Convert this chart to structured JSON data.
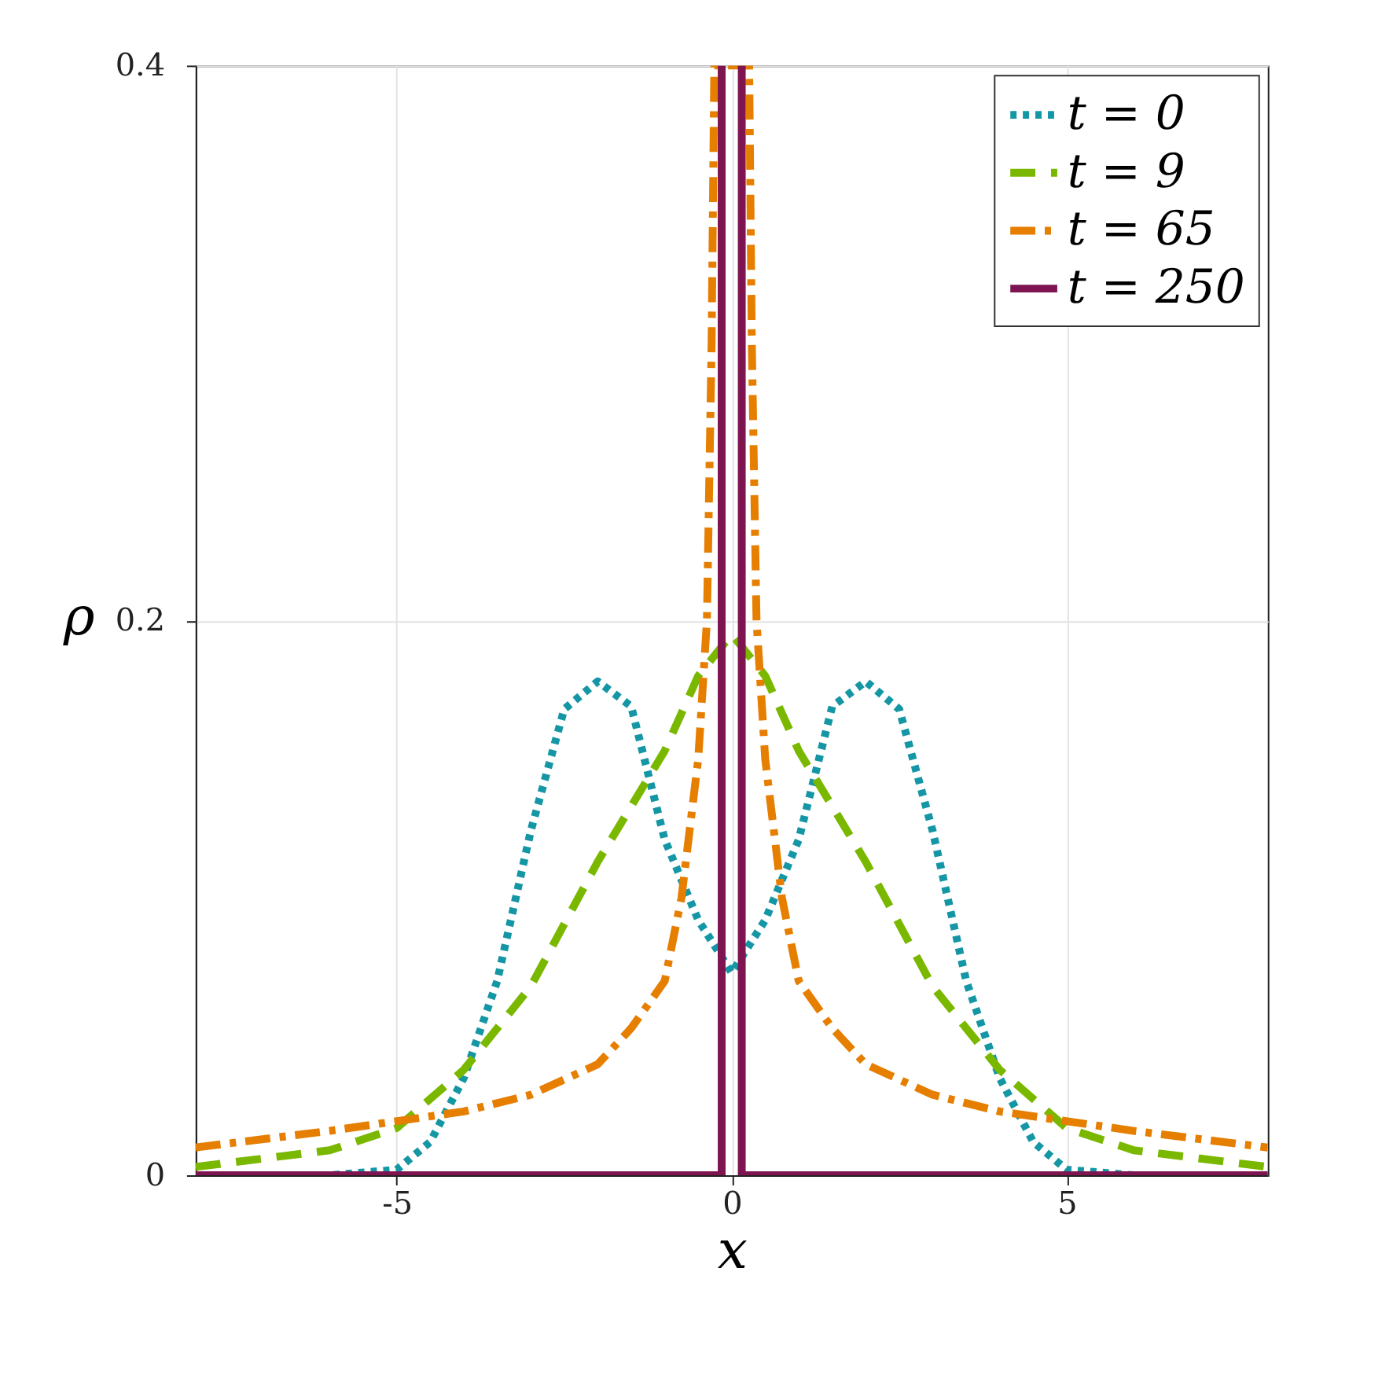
{
  "chart_data": {
    "type": "line",
    "xlabel": "x",
    "ylabel": "ρ",
    "xlim": [
      -8,
      8
    ],
    "ylim": [
      0,
      0.4
    ],
    "xticks": [
      -5,
      0,
      5
    ],
    "yticks": [
      0,
      0.2,
      0.4
    ],
    "grid": true,
    "legend": "top right",
    "marker": "none",
    "series": [
      {
        "name": "t = 0",
        "color": "#1596a5",
        "line_style": "dotted",
        "x": [
          -8,
          -6,
          -5,
          -4.5,
          -4,
          -3.5,
          -3,
          -2.5,
          -2,
          -1.5,
          -1,
          -0.5,
          0,
          0.5,
          1,
          1.5,
          2,
          2.5,
          3,
          3.5,
          4,
          4.5,
          5,
          6,
          8
        ],
        "values": [
          0,
          0,
          0.002,
          0.012,
          0.035,
          0.07,
          0.124,
          0.168,
          0.178,
          0.169,
          0.121,
          0.092,
          0.073,
          0.092,
          0.121,
          0.169,
          0.178,
          0.168,
          0.124,
          0.07,
          0.035,
          0.012,
          0.002,
          0,
          0
        ]
      },
      {
        "name": "t = 9",
        "color": "#7ab800",
        "line_style": "dashed",
        "x": [
          -8,
          -6,
          -5,
          -4,
          -3,
          -2,
          -1,
          -0.5,
          0,
          0.5,
          1,
          2,
          3,
          4,
          5,
          6,
          8
        ],
        "values": [
          0.003,
          0.009,
          0.017,
          0.038,
          0.068,
          0.113,
          0.153,
          0.18,
          0.195,
          0.18,
          0.153,
          0.113,
          0.068,
          0.038,
          0.017,
          0.009,
          0.003
        ]
      },
      {
        "name": "t = 65",
        "color": "#e67e00",
        "line_style": "dashdot",
        "x": [
          -8,
          -6,
          -4,
          -3,
          -2,
          -1.5,
          -1,
          -0.75,
          -0.5,
          -0.37,
          -0.3,
          -0.26,
          0.26,
          0.3,
          0.37,
          0.5,
          0.75,
          1,
          1.5,
          2,
          3,
          4,
          6,
          8
        ],
        "values": [
          0.01,
          0.016,
          0.023,
          0.029,
          0.04,
          0.053,
          0.07,
          0.1,
          0.15,
          0.2,
          0.3,
          0.4,
          0.4,
          0.3,
          0.2,
          0.15,
          0.1,
          0.07,
          0.053,
          0.04,
          0.029,
          0.023,
          0.016,
          0.01
        ]
      },
      {
        "name": "t = 250",
        "color": "#7e1450",
        "line_style": "solid",
        "x": [
          -8,
          -0.15,
          -0.15,
          0,
          0.15,
          0.15,
          8
        ],
        "values": [
          0,
          0,
          0.4,
          null,
          0.4,
          0,
          0
        ]
      }
    ]
  }
}
